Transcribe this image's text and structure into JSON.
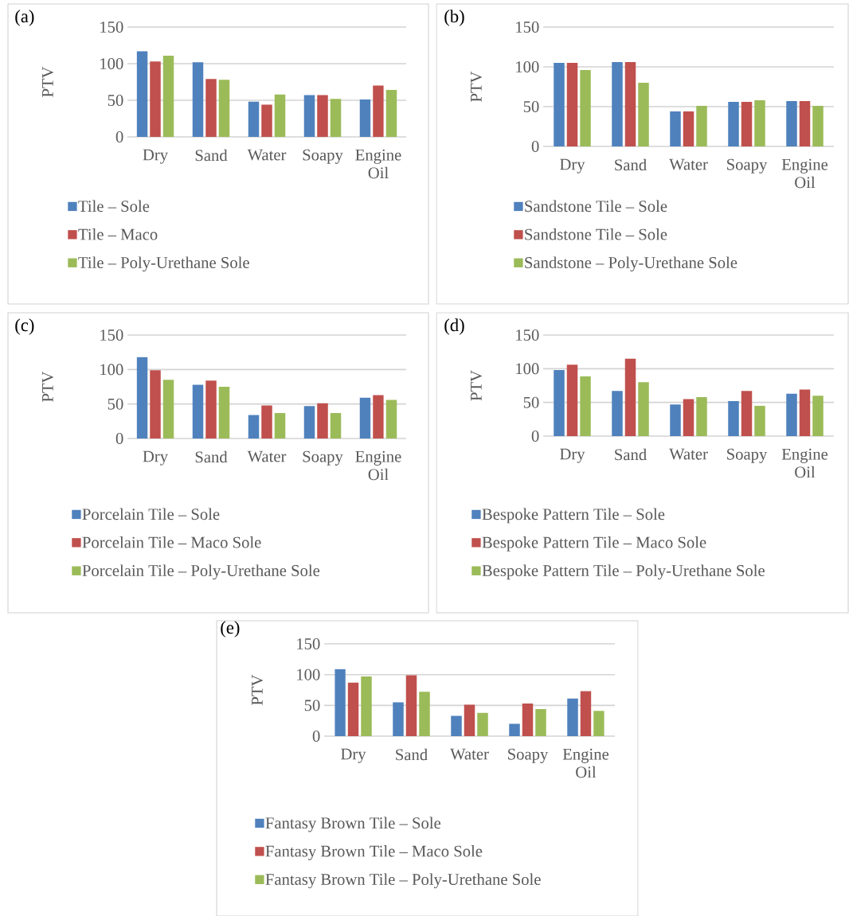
{
  "chart_data": [
    {
      "type": "bar",
      "title": "(a)",
      "ylabel": "PTV",
      "categories": [
        "Dry",
        "Sand",
        "Water",
        "Soapy",
        "Engine Oil"
      ],
      "ylim": [
        0,
        150
      ],
      "yticks": [
        0,
        50,
        100,
        150
      ],
      "grid": "y",
      "legend": "bottom",
      "series": [
        {
          "name": "Tile – Sole",
          "color": "#4f81bd",
          "values": [
            117,
            102,
            48,
            57,
            51
          ]
        },
        {
          "name": "Tile – Maco",
          "color": "#c0504d",
          "values": [
            103,
            79,
            44,
            57,
            70
          ]
        },
        {
          "name": "Tile – Poly-Urethane Sole",
          "color": "#9bbb59",
          "values": [
            111,
            78,
            58,
            52,
            64
          ]
        }
      ]
    },
    {
      "type": "bar",
      "title": "(b)",
      "ylabel": "PTV",
      "categories": [
        "Dry",
        "Sand",
        "Water",
        "Soapy",
        "Engine Oil"
      ],
      "ylim": [
        0,
        150
      ],
      "yticks": [
        0,
        50,
        100,
        150
      ],
      "grid": "y",
      "legend": "bottom",
      "series": [
        {
          "name": "Sandstone Tile – Sole",
          "color": "#4f81bd",
          "values": [
            105,
            106,
            44,
            56,
            57
          ]
        },
        {
          "name": "Sandstone Tile – Sole",
          "color": "#c0504d",
          "values": [
            105,
            106,
            44,
            56,
            57
          ]
        },
        {
          "name": "Sandstone – Poly-Urethane Sole",
          "color": "#9bbb59",
          "values": [
            96,
            80,
            51,
            58,
            51
          ]
        }
      ]
    },
    {
      "type": "bar",
      "title": "(c)",
      "ylabel": "PTV",
      "categories": [
        "Dry",
        "Sand",
        "Water",
        "Soapy",
        "Engine Oil"
      ],
      "ylim": [
        0,
        150
      ],
      "yticks": [
        0,
        50,
        100,
        150
      ],
      "grid": "y",
      "legend": "bottom",
      "series": [
        {
          "name": "Porcelain Tile – Sole",
          "color": "#4f81bd",
          "values": [
            118,
            78,
            34,
            47,
            59
          ]
        },
        {
          "name": "Porcelain Tile – Maco Sole",
          "color": "#c0504d",
          "values": [
            99,
            84,
            48,
            51,
            63
          ]
        },
        {
          "name": "Porcelain Tile – Poly-Urethane Sole",
          "color": "#9bbb59",
          "values": [
            85,
            75,
            37,
            37,
            56
          ]
        }
      ]
    },
    {
      "type": "bar",
      "title": "(d)",
      "ylabel": "PTV",
      "categories": [
        "Dry",
        "Sand",
        "Water",
        "Soapy",
        "Engine Oil"
      ],
      "ylim": [
        0,
        150
      ],
      "yticks": [
        0,
        50,
        100,
        150
      ],
      "grid": "y",
      "legend": "bottom",
      "series": [
        {
          "name": "Bespoke Pattern Tile – Sole",
          "color": "#4f81bd",
          "values": [
            98,
            67,
            47,
            52,
            63
          ]
        },
        {
          "name": "Bespoke Pattern Tile – Maco Sole",
          "color": "#c0504d",
          "values": [
            106,
            115,
            55,
            67,
            69
          ]
        },
        {
          "name": "Bespoke Pattern Tile – Poly-Urethane Sole",
          "color": "#9bbb59",
          "values": [
            89,
            80,
            58,
            45,
            60
          ]
        }
      ]
    },
    {
      "type": "bar",
      "title": "(e)",
      "ylabel": "PTV",
      "categories": [
        "Dry",
        "Sand",
        "Water",
        "Soapy",
        "Engine Oil"
      ],
      "ylim": [
        0,
        150
      ],
      "yticks": [
        0,
        50,
        100,
        150
      ],
      "grid": "y",
      "legend": "bottom",
      "series": [
        {
          "name": "Fantasy Brown Tile – Sole",
          "color": "#4f81bd",
          "values": [
            109,
            55,
            33,
            20,
            61
          ]
        },
        {
          "name": "Fantasy Brown Tile – Maco Sole",
          "color": "#c0504d",
          "values": [
            87,
            99,
            51,
            53,
            73
          ]
        },
        {
          "name": "Fantasy Brown Tile – Poly-Urethane Sole",
          "color": "#9bbb59",
          "values": [
            97,
            72,
            38,
            44,
            41
          ]
        }
      ]
    }
  ]
}
